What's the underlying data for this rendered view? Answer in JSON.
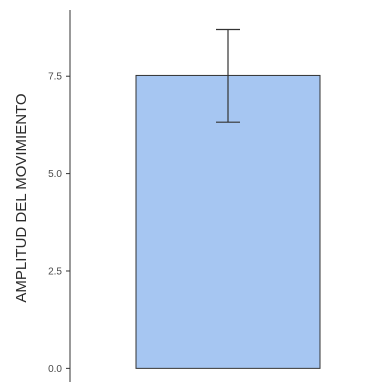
{
  "chart_data": {
    "type": "bar",
    "categories": [
      ""
    ],
    "values": [
      7.52
    ],
    "error_bars": [
      {
        "upper": 8.7,
        "lower": 6.32
      }
    ],
    "title": "",
    "xlabel": "",
    "ylabel": "AMPLITUD DEL MOVIMIENTO",
    "ylim": [
      -0.35,
      9.2
    ],
    "yticks": [
      0.0,
      2.5,
      5.0,
      7.5
    ],
    "ytick_labels": [
      "0.0",
      "2.5",
      "5.0",
      "7.5"
    ],
    "grid": false,
    "legend": "none",
    "colors": {
      "bar_fill": "#a6c6f2",
      "bar_stroke": "#333333",
      "axis": "#333333",
      "error_bar": "#333333"
    }
  }
}
